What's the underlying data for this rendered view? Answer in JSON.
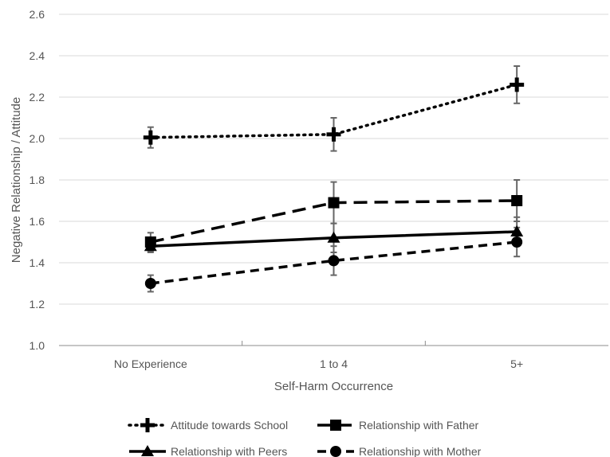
{
  "chart_data": {
    "type": "line",
    "title": "",
    "xlabel": "Self-Harm Occurrence",
    "ylabel": "Negative Relationship / Attitude",
    "categories": [
      "No Experience",
      "1 to 4",
      "5+"
    ],
    "ylim": [
      1.0,
      2.6
    ],
    "yticks": [
      "1.0",
      "1.2",
      "1.4",
      "1.6",
      "1.8",
      "2.0",
      "2.2",
      "2.4",
      "2.6"
    ],
    "grid": true,
    "legend_position": "bottom",
    "series": [
      {
        "name": "Attitude towards School",
        "values": [
          2.005,
          2.02,
          2.26
        ],
        "errors": [
          0.05,
          0.08,
          0.09
        ],
        "marker": "plus",
        "line": "dotted",
        "color": "#000000"
      },
      {
        "name": "Relationship with Father",
        "values": [
          1.5,
          1.69,
          1.7
        ],
        "errors": [
          0.045,
          0.1,
          0.1
        ],
        "marker": "square",
        "line": "long-dash",
        "color": "#000000"
      },
      {
        "name": "Relationship with Peers",
        "values": [
          1.48,
          1.52,
          1.55
        ],
        "errors": [
          0.03,
          0.07,
          0.07
        ],
        "marker": "triangle",
        "line": "solid",
        "color": "#000000"
      },
      {
        "name": "Relationship with Mother",
        "values": [
          1.3,
          1.41,
          1.5
        ],
        "errors": [
          0.04,
          0.07,
          0.07
        ],
        "marker": "circle",
        "line": "dashed",
        "color": "#000000"
      }
    ]
  }
}
